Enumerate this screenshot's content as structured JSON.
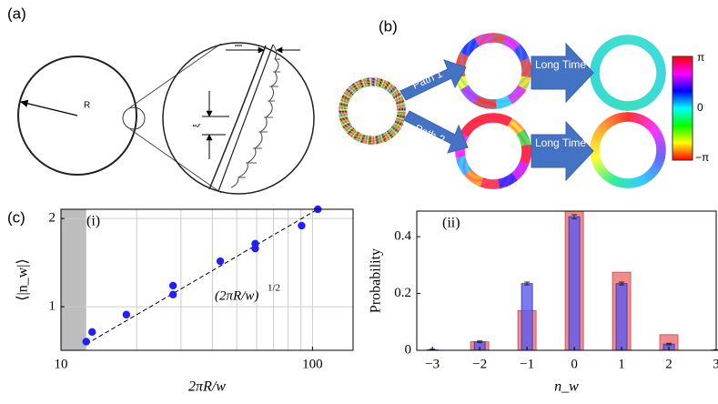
{
  "panels": {
    "a": {
      "label": "(a)",
      "radius_label": "R",
      "xi_label": "ξ"
    },
    "b": {
      "label": "(b)",
      "path1": "Path 1",
      "path2": "Path 2",
      "long_time": "Long Time",
      "colorbar_ticks": [
        "π",
        "0",
        "−π"
      ]
    },
    "c": {
      "label": "(c)"
    }
  },
  "chart_data": [
    {
      "type": "scatter",
      "annotation": "(i)",
      "xlabel": "2πR/w",
      "ylabel": "⟨|n_w|⟩",
      "x": [
        12.6,
        13.3,
        18.2,
        27.9,
        27.9,
        43.0,
        59.2,
        59.2,
        90.5,
        105
      ],
      "values": [
        0.76,
        0.82,
        0.94,
        1.18,
        1.1,
        1.43,
        1.64,
        1.58,
        1.89,
        2.15
      ],
      "color": "#1f1fff",
      "xlim": [
        10,
        145
      ],
      "ylim": [
        0.71,
        2.15
      ],
      "xlog": true,
      "ylog": true,
      "xticks": [
        10,
        100
      ],
      "yticks": [
        1,
        2
      ],
      "xgrid_minor": [
        20,
        30,
        40,
        50,
        60,
        70,
        80,
        90
      ],
      "grid": true,
      "shaded_region": [
        10,
        12.6
      ],
      "fit": {
        "coefficient": 0.21,
        "exponent": 0.5,
        "label": "(2πR/w)",
        "exponent_label": "1/2"
      }
    },
    {
      "type": "bar",
      "annotation": "(ii)",
      "xlabel": "n_w",
      "ylabel": "Probability",
      "x": [
        -3,
        -2,
        -1,
        0,
        1,
        2,
        3
      ],
      "series": [
        {
          "color": "#f07878",
          "values": [
            0,
            0.03,
            0.14,
            0.49,
            0.275,
            0.055,
            0
          ]
        },
        {
          "color": "#5a5af0",
          "values": [
            0.002,
            0.03,
            0.235,
            0.47,
            0.235,
            0.022,
            0.001
          ],
          "errors": [
            0.002,
            0.003,
            0.005,
            0.007,
            0.005,
            0.003,
            0.001
          ]
        }
      ],
      "xlim": [
        -3.33,
        3.0
      ],
      "ylim": [
        0,
        0.49
      ],
      "xticks": [
        {
          "value": -3,
          "label": "−3"
        },
        {
          "value": -2,
          "label": "−2"
        },
        {
          "value": -1,
          "label": "−1"
        },
        0,
        1,
        2,
        3
      ],
      "yticks": [
        0,
        0.2,
        0.4
      ]
    }
  ]
}
